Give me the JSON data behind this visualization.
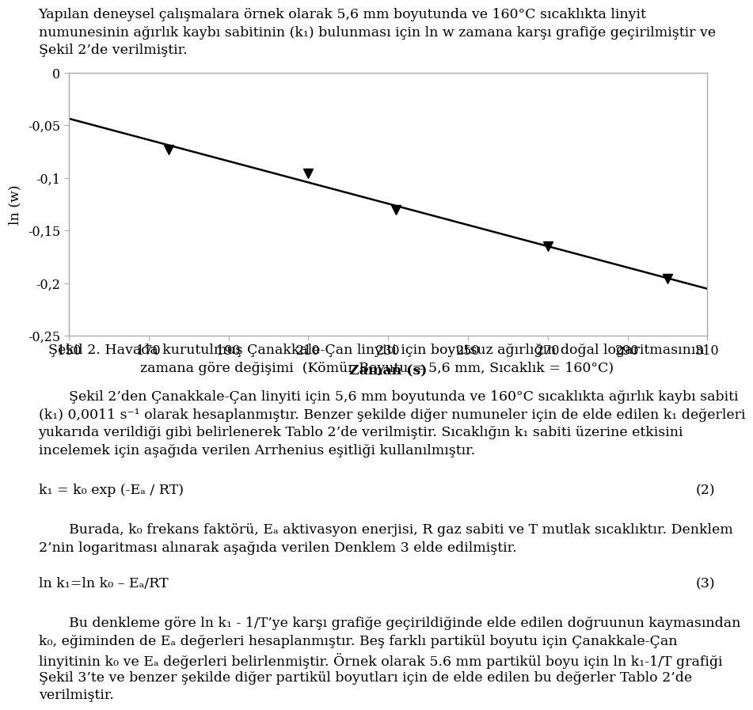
{
  "x_data": [
    175,
    210,
    232,
    270,
    300
  ],
  "y_data": [
    -0.073,
    -0.096,
    -0.13,
    -0.165,
    -0.196
  ],
  "xlabel": "Zaman (s)",
  "ylabel": "ln (w)",
  "xlim": [
    150,
    310
  ],
  "ylim": [
    -0.25,
    0.0
  ],
  "xticks": [
    150,
    170,
    190,
    210,
    230,
    250,
    270,
    290,
    310
  ],
  "yticks": [
    0,
    -0.05,
    -0.1,
    -0.15,
    -0.2,
    -0.25
  ],
  "ytick_labels": [
    "0",
    "-0,05",
    "-0,1",
    "-0,15",
    "-0,2",
    "-0,25"
  ],
  "para1_lines": [
    "Yapılan deneysel çalışmalara örnek olarak 5,6 mm boyutunda ve 160°C sıcaklıkta linyit",
    "numunesinin ağırlık kaybı sabitinin (k₁) bulunması için ln w zamana karşı grafiğe geçirilmiştir ve",
    "Şekil 2’de verilmiştir."
  ],
  "figure_caption_line1": "Şekil 2. Havada kurutulmuş Çanakkale-Çan linyiti için boyutsuz ağırlığın doğal logaritmasının",
  "figure_caption_line2": "zamana göre değişimi  (Kömür Boyutu = 5,6 mm, Sıcaklık = 160°C)",
  "para2_lines": [
    "Şekil 2’den Çanakkale-Çan linyiti için 5,6 mm boyutunda ve 160°C sıcaklıkta ağırlık kaybı sabiti",
    "(k₁) 0,0011 s⁻¹ olarak hesaplanmıştır. Benzer şekilde diğer numuneler için de elde edilen k₁ değerleri",
    "yukarıda verildiği gibi belirlenerek Tablo 2’de verilmiştir. Sıcaklığın k₁ sabiti üzerine etkisini",
    "incelemek için aşağıda verilen Arrhenius eşitliği kullanılmıştır."
  ],
  "eq2_left": "k₁ = k₀ exp (-Eₐ / RT)",
  "eq2_num": "(2)",
  "para3_lines": [
    "Burada, k₀ frekans faktörü, Eₐ aktivasyon enerjisi, R gaz sabiti ve T mutlak sıcaklıktır. Denklem",
    "2’nin logaritması alınarak aşağıda verilen Denklem 3 elde edilmiştir."
  ],
  "eq3_left": "ln k₁=ln k₀ – Eₐ/RT",
  "eq3_num": "(3)",
  "para4_lines": [
    "Bu denkleme göre ln k₁ - 1/T’ye karşı grafiğe geçirildiğinde elde edilen doğruunun kaymasından",
    "k₀, eğiminden de Eₐ değerleri hesaplanmıştır. Beş farklı partikül boyutu için Çanakkale-Çan",
    "linyitinin k₀ ve Eₐ değerleri belirlenmiştir. Örnek olarak 5.6 mm partikül boyu için ln k₁-1/T grafiği",
    "Şekil 3’te ve benzer şekilde diğer partikül boyutları için de elde edilen bu değerler Tablo 2’de",
    "verilmiştir."
  ],
  "line_color": "#000000",
  "marker_color": "#000000",
  "bg_color": "#ffffff",
  "text_color": "#000000",
  "plot_border_color": "#aaaaaa",
  "font_size_body": 12.5,
  "font_size_axis_label": 12.5,
  "font_size_tick": 11.5
}
